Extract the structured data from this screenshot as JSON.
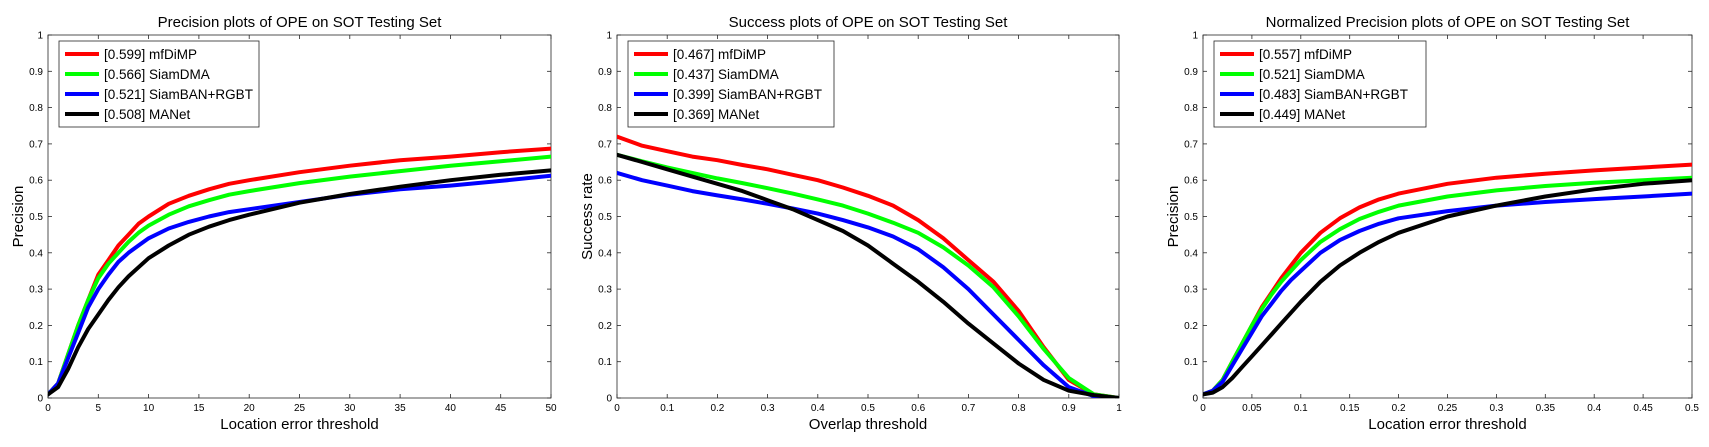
{
  "chart_data": [
    {
      "type": "line",
      "title": "Precision plots of OPE on SOT Testing Set",
      "xlabel": "Location error threshold",
      "ylabel": "Precision",
      "xlim": [
        0,
        50
      ],
      "ylim": [
        0,
        1
      ],
      "xticks": [
        0,
        5,
        10,
        15,
        20,
        25,
        30,
        35,
        40,
        45,
        50
      ],
      "xtick_labels": [
        "0",
        "5",
        "10",
        "15",
        "20",
        "25",
        "30",
        "35",
        "40",
        "45",
        "50"
      ],
      "yticks": [
        0,
        0.1,
        0.2,
        0.3,
        0.4,
        0.5,
        0.6,
        0.7,
        0.8,
        0.9,
        1
      ],
      "ytick_labels": [
        "0",
        "0.1",
        "0.2",
        "0.3",
        "0.4",
        "0.5",
        "0.6",
        "0.7",
        "0.8",
        "0.9",
        "1"
      ],
      "grid": false,
      "legend_position": "top-left",
      "series": [
        {
          "name": "[0.599] mfDiMP",
          "color": "#ff0000",
          "x": [
            0,
            1,
            2,
            3,
            4,
            5,
            6,
            7,
            8,
            9,
            10,
            12,
            14,
            16,
            18,
            20,
            25,
            30,
            35,
            40,
            45,
            50
          ],
          "y": [
            0.01,
            0.04,
            0.12,
            0.2,
            0.27,
            0.34,
            0.38,
            0.42,
            0.45,
            0.48,
            0.5,
            0.535,
            0.557,
            0.575,
            0.59,
            0.6,
            0.622,
            0.64,
            0.655,
            0.665,
            0.677,
            0.687
          ]
        },
        {
          "name": "[0.566] SiamDMA",
          "color": "#00ff00",
          "x": [
            0,
            1,
            2,
            3,
            4,
            5,
            6,
            7,
            8,
            9,
            10,
            12,
            14,
            16,
            18,
            20,
            25,
            30,
            35,
            40,
            45,
            50
          ],
          "y": [
            0.01,
            0.04,
            0.12,
            0.2,
            0.27,
            0.33,
            0.37,
            0.4,
            0.43,
            0.455,
            0.475,
            0.505,
            0.528,
            0.545,
            0.56,
            0.57,
            0.592,
            0.61,
            0.625,
            0.64,
            0.652,
            0.665
          ]
        },
        {
          "name": "[0.521] SiamBAN+RGBT",
          "color": "#0000ff",
          "x": [
            0,
            1,
            2,
            3,
            4,
            5,
            6,
            7,
            8,
            9,
            10,
            12,
            14,
            16,
            18,
            20,
            25,
            30,
            35,
            40,
            45,
            50
          ],
          "y": [
            0.01,
            0.04,
            0.11,
            0.18,
            0.25,
            0.3,
            0.34,
            0.375,
            0.4,
            0.42,
            0.44,
            0.467,
            0.485,
            0.5,
            0.512,
            0.52,
            0.54,
            0.56,
            0.575,
            0.585,
            0.598,
            0.612
          ]
        },
        {
          "name": "[0.508] MANet",
          "color": "#000000",
          "x": [
            0,
            1,
            2,
            3,
            4,
            5,
            6,
            7,
            8,
            9,
            10,
            12,
            14,
            16,
            18,
            20,
            25,
            30,
            35,
            40,
            45,
            50
          ],
          "y": [
            0.01,
            0.03,
            0.08,
            0.14,
            0.19,
            0.23,
            0.27,
            0.305,
            0.335,
            0.36,
            0.385,
            0.42,
            0.45,
            0.472,
            0.49,
            0.505,
            0.538,
            0.562,
            0.582,
            0.6,
            0.615,
            0.627
          ]
        }
      ]
    },
    {
      "type": "line",
      "title": "Success plots of OPE on SOT Testing Set",
      "xlabel": "Overlap threshold",
      "ylabel": "Success rate",
      "xlim": [
        0,
        1
      ],
      "ylim": [
        0,
        1
      ],
      "xticks": [
        0,
        0.1,
        0.2,
        0.3,
        0.4,
        0.5,
        0.6,
        0.7,
        0.8,
        0.9,
        1
      ],
      "xtick_labels": [
        "0",
        "0.1",
        "0.2",
        "0.3",
        "0.4",
        "0.5",
        "0.6",
        "0.7",
        "0.8",
        "0.9",
        "1"
      ],
      "yticks": [
        0,
        0.1,
        0.2,
        0.3,
        0.4,
        0.5,
        0.6,
        0.7,
        0.8,
        0.9,
        1
      ],
      "ytick_labels": [
        "0",
        "0.1",
        "0.2",
        "0.3",
        "0.4",
        "0.5",
        "0.6",
        "0.7",
        "0.8",
        "0.9",
        "1"
      ],
      "grid": false,
      "legend_position": "top-left",
      "series": [
        {
          "name": "[0.467] mfDiMP",
          "color": "#ff0000",
          "x": [
            0,
            0.05,
            0.1,
            0.15,
            0.2,
            0.25,
            0.3,
            0.35,
            0.4,
            0.45,
            0.5,
            0.55,
            0.6,
            0.65,
            0.7,
            0.75,
            0.8,
            0.85,
            0.9,
            0.95,
            1
          ],
          "y": [
            0.72,
            0.695,
            0.68,
            0.665,
            0.655,
            0.642,
            0.63,
            0.615,
            0.6,
            0.58,
            0.557,
            0.53,
            0.49,
            0.44,
            0.38,
            0.32,
            0.24,
            0.14,
            0.05,
            0.01,
            0
          ]
        },
        {
          "name": "[0.437] SiamDMA",
          "color": "#00ff00",
          "x": [
            0,
            0.05,
            0.1,
            0.15,
            0.2,
            0.25,
            0.3,
            0.35,
            0.4,
            0.45,
            0.5,
            0.55,
            0.6,
            0.65,
            0.7,
            0.75,
            0.8,
            0.85,
            0.9,
            0.95,
            1
          ],
          "y": [
            0.67,
            0.652,
            0.635,
            0.62,
            0.605,
            0.592,
            0.578,
            0.563,
            0.547,
            0.53,
            0.508,
            0.483,
            0.455,
            0.415,
            0.365,
            0.305,
            0.225,
            0.135,
            0.055,
            0.01,
            0
          ]
        },
        {
          "name": "[0.399] SiamBAN+RGBT",
          "color": "#0000ff",
          "x": [
            0,
            0.05,
            0.1,
            0.15,
            0.2,
            0.25,
            0.3,
            0.35,
            0.4,
            0.45,
            0.5,
            0.55,
            0.6,
            0.65,
            0.7,
            0.75,
            0.8,
            0.85,
            0.9,
            0.95,
            1
          ],
          "y": [
            0.62,
            0.6,
            0.585,
            0.57,
            0.558,
            0.547,
            0.535,
            0.522,
            0.508,
            0.49,
            0.47,
            0.445,
            0.41,
            0.36,
            0.3,
            0.23,
            0.16,
            0.09,
            0.03,
            0.005,
            0
          ]
        },
        {
          "name": "[0.369] MANet",
          "color": "#000000",
          "x": [
            0,
            0.05,
            0.1,
            0.15,
            0.2,
            0.25,
            0.3,
            0.35,
            0.4,
            0.45,
            0.5,
            0.55,
            0.6,
            0.65,
            0.7,
            0.75,
            0.8,
            0.85,
            0.9,
            0.95,
            1
          ],
          "y": [
            0.67,
            0.65,
            0.63,
            0.61,
            0.59,
            0.57,
            0.545,
            0.52,
            0.49,
            0.46,
            0.42,
            0.37,
            0.32,
            0.265,
            0.205,
            0.15,
            0.095,
            0.05,
            0.02,
            0.008,
            0
          ]
        }
      ]
    },
    {
      "type": "line",
      "title": "Normalized Precision plots of OPE on SOT Testing Set",
      "xlabel": "Location error threshold",
      "ylabel": "Precision",
      "xlim": [
        0,
        0.5
      ],
      "ylim": [
        0,
        1
      ],
      "xticks": [
        0,
        0.05,
        0.1,
        0.15,
        0.2,
        0.25,
        0.3,
        0.35,
        0.4,
        0.45,
        0.5
      ],
      "xtick_labels": [
        "0",
        "0.05",
        "0.1",
        "0.15",
        "0.2",
        "0.25",
        "0.3",
        "0.35",
        "0.4",
        "0.45",
        "0.5"
      ],
      "yticks": [
        0,
        0.1,
        0.2,
        0.3,
        0.4,
        0.5,
        0.6,
        0.7,
        0.8,
        0.9,
        1
      ],
      "ytick_labels": [
        "0",
        "0.1",
        "0.2",
        "0.3",
        "0.4",
        "0.5",
        "0.6",
        "0.7",
        "0.8",
        "0.9",
        "1"
      ],
      "grid": false,
      "legend_position": "top-left",
      "series": [
        {
          "name": "[0.557] mfDiMP",
          "color": "#ff0000",
          "x": [
            0,
            0.01,
            0.02,
            0.03,
            0.04,
            0.05,
            0.06,
            0.07,
            0.08,
            0.09,
            0.1,
            0.12,
            0.14,
            0.16,
            0.18,
            0.2,
            0.25,
            0.3,
            0.35,
            0.4,
            0.45,
            0.5
          ],
          "y": [
            0.01,
            0.02,
            0.05,
            0.1,
            0.15,
            0.2,
            0.25,
            0.29,
            0.33,
            0.365,
            0.4,
            0.455,
            0.495,
            0.525,
            0.547,
            0.563,
            0.59,
            0.607,
            0.618,
            0.627,
            0.635,
            0.643
          ]
        },
        {
          "name": "[0.521] SiamDMA",
          "color": "#00ff00",
          "x": [
            0,
            0.01,
            0.02,
            0.03,
            0.04,
            0.05,
            0.06,
            0.07,
            0.08,
            0.09,
            0.1,
            0.12,
            0.14,
            0.16,
            0.18,
            0.2,
            0.25,
            0.3,
            0.35,
            0.4,
            0.45,
            0.5
          ],
          "y": [
            0.01,
            0.02,
            0.05,
            0.1,
            0.15,
            0.2,
            0.245,
            0.285,
            0.32,
            0.35,
            0.38,
            0.43,
            0.465,
            0.493,
            0.513,
            0.53,
            0.555,
            0.572,
            0.584,
            0.593,
            0.6,
            0.607
          ]
        },
        {
          "name": "[0.483] SiamBAN+RGBT",
          "color": "#0000ff",
          "x": [
            0,
            0.01,
            0.02,
            0.03,
            0.04,
            0.05,
            0.06,
            0.07,
            0.08,
            0.09,
            0.1,
            0.12,
            0.14,
            0.16,
            0.18,
            0.2,
            0.25,
            0.3,
            0.35,
            0.4,
            0.45,
            0.5
          ],
          "y": [
            0.01,
            0.02,
            0.045,
            0.09,
            0.135,
            0.18,
            0.225,
            0.26,
            0.295,
            0.325,
            0.35,
            0.4,
            0.435,
            0.46,
            0.48,
            0.495,
            0.515,
            0.53,
            0.54,
            0.548,
            0.555,
            0.563
          ]
        },
        {
          "name": "[0.449] MANet",
          "color": "#000000",
          "x": [
            0,
            0.01,
            0.02,
            0.03,
            0.04,
            0.05,
            0.06,
            0.07,
            0.08,
            0.09,
            0.1,
            0.12,
            0.14,
            0.16,
            0.18,
            0.2,
            0.25,
            0.3,
            0.35,
            0.4,
            0.45,
            0.5
          ],
          "y": [
            0.01,
            0.015,
            0.03,
            0.055,
            0.085,
            0.115,
            0.145,
            0.175,
            0.205,
            0.235,
            0.265,
            0.32,
            0.365,
            0.4,
            0.43,
            0.455,
            0.5,
            0.53,
            0.555,
            0.575,
            0.59,
            0.6
          ]
        }
      ]
    }
  ]
}
